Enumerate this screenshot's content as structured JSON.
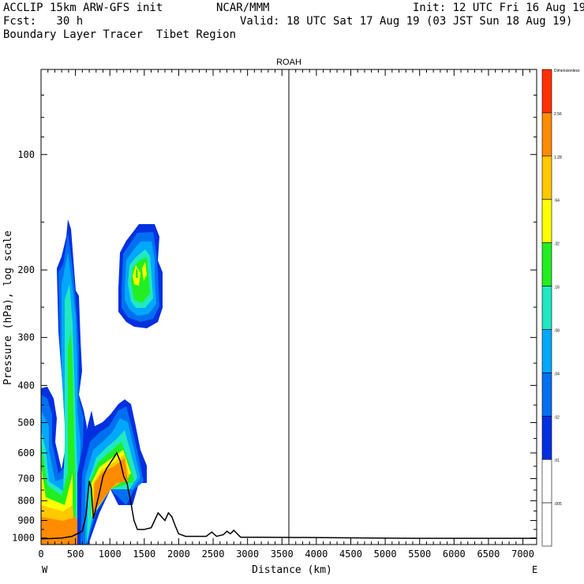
{
  "header": {
    "line1_left": "ACCLIP 15km ARW-GFS init",
    "line1_mid": "NCAR/MMM",
    "line1_right": "Init: 12 UTC Fri 16 Aug 19",
    "line2_left": "Fcst:   30 h",
    "line2_right": "Valid: 18 UTC Sat 17 Aug 19 (03 JST Sun 18 Aug 19)",
    "line3_left": "Boundary Layer Tracer  Tibet Region"
  },
  "chart_data": {
    "type": "heatmap",
    "title": "ROAH",
    "xlabel": "Distance (km)",
    "ylabel": "Pressure (hPa), log scale",
    "x_ticks": [
      "0",
      "500",
      "1000",
      "1500",
      "2000",
      "2500",
      "3000",
      "3500",
      "4000",
      "4500",
      "5000",
      "5500",
      "6000",
      "6500",
      "7000"
    ],
    "y_ticks": [
      "100",
      "200",
      "300",
      "400",
      "500",
      "600",
      "700",
      "800",
      "900",
      "1000"
    ],
    "x_start_label": "W",
    "x_end_label": "E",
    "xlim": [
      0,
      7200
    ],
    "ylim": [
      1040,
      60
    ],
    "marker_line_x": 3600,
    "colorbar": {
      "labels": [
        "Dimensionless",
        "2.56",
        "1.28",
        ".64",
        ".32",
        ".16",
        ".08",
        ".04",
        ".02",
        ".01",
        ".005"
      ],
      "colors": [
        "#ff3000",
        "#ff8c00",
        "#ffc800",
        "#ffff00",
        "#22ee22",
        "#20e8c0",
        "#00a8ff",
        "#0070f0",
        "#0030e0",
        "#ffffff",
        "#ffffff"
      ]
    },
    "terrain_profile": [
      [
        0,
        1005
      ],
      [
        150,
        1003
      ],
      [
        300,
        1000
      ],
      [
        450,
        990
      ],
      [
        600,
        960
      ],
      [
        650,
        880
      ],
      [
        700,
        710
      ],
      [
        730,
        740
      ],
      [
        760,
        890
      ],
      [
        800,
        830
      ],
      [
        850,
        760
      ],
      [
        900,
        690
      ],
      [
        950,
        660
      ],
      [
        1000,
        640
      ],
      [
        1050,
        620
      ],
      [
        1100,
        600
      ],
      [
        1150,
        630
      ],
      [
        1200,
        690
      ],
      [
        1250,
        720
      ],
      [
        1300,
        800
      ],
      [
        1350,
        900
      ],
      [
        1400,
        950
      ],
      [
        1500,
        950
      ],
      [
        1600,
        940
      ],
      [
        1650,
        900
      ],
      [
        1700,
        860
      ],
      [
        1750,
        880
      ],
      [
        1800,
        900
      ],
      [
        1850,
        860
      ],
      [
        1900,
        880
      ],
      [
        1950,
        930
      ],
      [
        2000,
        975
      ],
      [
        2100,
        990
      ],
      [
        2400,
        990
      ],
      [
        2480,
        965
      ],
      [
        2550,
        990
      ],
      [
        2650,
        980
      ],
      [
        2700,
        960
      ],
      [
        2750,
        975
      ],
      [
        2800,
        955
      ],
      [
        2850,
        975
      ],
      [
        2900,
        995
      ],
      [
        3200,
        995
      ],
      [
        4800,
        1000
      ],
      [
        5500,
        1002
      ],
      [
        7200,
        1002
      ]
    ]
  }
}
